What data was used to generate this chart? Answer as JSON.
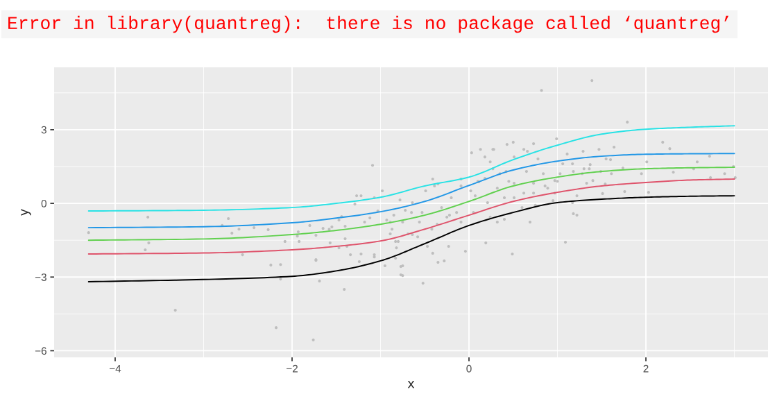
{
  "chart_data": {
    "type": "scatter",
    "xlabel": "x",
    "ylabel": "y",
    "annotations": [
      "Error in library(quantreg):  there is no package called ‘quantreg’"
    ],
    "xlim": [
      -4.69,
      3.38
    ],
    "ylim": [
      -6.27,
      5.54
    ],
    "xticks": [
      {
        "value": -4,
        "label": "−4"
      },
      {
        "value": -2,
        "label": "−2"
      },
      0,
      2
    ],
    "yticks": [
      {
        "value": -6,
        "label": "−6"
      },
      {
        "value": -3,
        "label": "−3"
      },
      0,
      3
    ],
    "grid": true,
    "legend": false,
    "series": [
      {
        "marker": "circle",
        "color": "#bebebe",
        "x": [
          -4.3,
          -3.63,
          -3.62,
          -3.66,
          -3.32,
          -2.79,
          -2.72,
          -2.68,
          -2.6,
          -2.56,
          -2.43,
          -2.27,
          -2.24,
          -2.18,
          -2.13,
          -2.13,
          -2.08,
          -1.94,
          -1.92,
          -1.76,
          -1.69,
          -1.73,
          -1.41,
          -1.58,
          -1.4,
          -1.09,
          -1.27,
          -1.38,
          -1.22,
          -1.07,
          -0.95,
          -0.77,
          -0.83,
          -0.75,
          -0.64,
          -0.52,
          -0.41,
          -0.35,
          -0.49,
          -0.35,
          -0.22,
          -0.09,
          0.03,
          0.11,
          0.19,
          0.24,
          0.28,
          0.42,
          0.5,
          0.66,
          0.69,
          0.49,
          0.82,
          0.99,
          0.97,
          1.18,
          1.09,
          1.39,
          1.4,
          1.64,
          1.79,
          1.95,
          2.01,
          2.31,
          2.54,
          2.73,
          2.72,
          2.89,
          2.99,
          3.01,
          2.27,
          2.03,
          1.51,
          1.54,
          1.76,
          1.74,
          1.37,
          1.29,
          1.18,
          1.6,
          2.19,
          2.58,
          -0.41,
          -0.39,
          -0.78,
          -0.65,
          -0.56,
          -0.58,
          -0.8,
          -0.83,
          -0.75,
          -0.47,
          -0.23,
          -0.28,
          -0.04,
          -0.09,
          0.05,
          0.13,
          0.18,
          0.27,
          0.43,
          0.51,
          0.62,
          0.73,
          0.78,
          0.18,
          0.32,
          0.4,
          0.51,
          0.62,
          0.73,
          0.32,
          0.4,
          0.24,
          0.6,
          0.75,
          0.95,
          1.0,
          1.03,
          1.06,
          1.11,
          1.17,
          1.22,
          1.22,
          1.28,
          1.3,
          1.33,
          1.36,
          1.47,
          1.49,
          1.55,
          1.61,
          1.17,
          -0.09,
          0.02,
          0.07,
          -0.2,
          -0.31,
          -0.14,
          -0.25,
          -0.36,
          -0.42,
          -0.53,
          -0.64,
          -0.72,
          -0.85,
          -0.89,
          -0.89,
          -0.69,
          0.27,
          0.35,
          0.45,
          0.65,
          0.84,
          0.86,
          0.1,
          0.51,
          0.21,
          0.73,
          0.97,
          0.89,
          -1.93,
          -1.8,
          -1.73,
          -1.65,
          -1.55,
          -1.47,
          -1.44,
          -1.29,
          -1.22,
          -1.07,
          -0.98,
          -1.57,
          -1.47,
          -1.34,
          -1.24,
          -1.07,
          -1.73,
          -1.4,
          -1.18,
          -1.12,
          -1.03,
          -0.93,
          -0.87,
          -0.82,
          -0.77,
          -0.75
        ],
        "values": [
          -1.19,
          -0.56,
          -1.61,
          -1.89,
          -4.35,
          -0.9,
          -0.62,
          -1.21,
          -1.05,
          -2.09,
          -0.99,
          -1.07,
          -2.51,
          -5.06,
          -2.49,
          -3.08,
          -1.55,
          -1.33,
          -1.55,
          -5.56,
          -3.16,
          -2.32,
          -3.5,
          -1.05,
          -0.93,
          1.55,
          0.31,
          -1.75,
          -2.06,
          -2.18,
          -2.54,
          -2.91,
          -1.55,
          -0.76,
          -1.27,
          -3.25,
          -2.03,
          -2.4,
          0.51,
          0.79,
          -0.48,
          0.99,
          2.06,
          0.88,
          -1.61,
          1.69,
          2.2,
          1.3,
          2.49,
          2.12,
          -0.76,
          -2.06,
          4.6,
          2.63,
          0.93,
          -0.42,
          -1.58,
          5.0,
          0.93,
          2.29,
          3.31,
          1.21,
          1.69,
          1.27,
          1.41,
          1.05,
          1.92,
          1.21,
          1.5,
          1.05,
          2.23,
          0.45,
          0.4,
          0.79,
          0.48,
          1.44,
          1.58,
          2.12,
          1.3,
          1.78,
          2.49,
          1.69,
          0.99,
          0.71,
          0.14,
          -0.37,
          -0.76,
          -1.36,
          -1.55,
          -2.23,
          -2.54,
          -1.75,
          -1.75,
          -2.34,
          -1.95,
          -0.76,
          -0.37,
          2.2,
          1.89,
          2.2,
          2.4,
          1.89,
          2.2,
          2.43,
          1.81,
          1.02,
          0.62,
          0.23,
          0.82,
          0.42,
          0.82,
          -0.76,
          -0.65,
          -0.56,
          -0.17,
          -0.08,
          0.11,
          0.9,
          1.21,
          1.61,
          2.01,
          1.61,
          0.31,
          -0.48,
          1.21,
          1.41,
          0.82,
          1.41,
          2.2,
          1.3,
          1.81,
          1.21,
          0.03,
          0.71,
          0.51,
          0.31,
          0.23,
          -0.17,
          -0.37,
          -0.56,
          -0.85,
          -1.05,
          -0.37,
          0.03,
          -0.28,
          -0.48,
          -0.76,
          -1.24,
          -1.24,
          1.41,
          1.21,
          0.9,
          1.3,
          1.21,
          0.71,
          0.9,
          0.23,
          0.03,
          0.42,
          0.42,
          0.62,
          -1.16,
          -0.9,
          -1.3,
          -1.02,
          -0.96,
          -0.68,
          -0.54,
          -0.03,
          0.31,
          0.23,
          0.51,
          -1.61,
          -1.81,
          -2.09,
          -2.37,
          -2.09,
          -2.29,
          -1.44,
          -0.76,
          -0.59,
          -0.31,
          -0.68,
          -1.05,
          -1.81,
          -2.57,
          -2.94
        ]
      },
      {
        "type": "line",
        "color": "#000000",
        "x": [
          -4.3,
          -3,
          -2,
          -1.5,
          -1,
          -0.5,
          0,
          0.5,
          1,
          1.5,
          2,
          2.5,
          3
        ],
        "values": [
          -3.19,
          -3.1,
          -2.97,
          -2.75,
          -2.34,
          -1.64,
          -0.9,
          -0.37,
          0.03,
          0.17,
          0.25,
          0.29,
          0.31
        ]
      },
      {
        "type": "line",
        "color": "#df536b",
        "x": [
          -4.3,
          -3,
          -2,
          -1.5,
          -1,
          -0.5,
          0,
          0.5,
          1,
          1.5,
          2,
          2.5,
          3
        ],
        "values": [
          -2.06,
          -2.02,
          -1.89,
          -1.75,
          -1.53,
          -1.05,
          -0.48,
          0.08,
          0.45,
          0.71,
          0.85,
          0.95,
          0.99
        ]
      },
      {
        "type": "line",
        "color": "#61d04f",
        "x": [
          -4.3,
          -3,
          -2,
          -1.5,
          -1,
          -0.5,
          0,
          0.5,
          1,
          1.5,
          2,
          2.5,
          3
        ],
        "values": [
          -1.5,
          -1.45,
          -1.27,
          -1.1,
          -0.85,
          -0.48,
          0.08,
          0.71,
          1.07,
          1.3,
          1.41,
          1.45,
          1.47
        ]
      },
      {
        "type": "line",
        "color": "#2297e6",
        "x": [
          -4.3,
          -3,
          -2,
          -1.5,
          -1,
          -0.5,
          0,
          0.5,
          1,
          1.5,
          2,
          2.5,
          3
        ],
        "values": [
          -0.99,
          -0.95,
          -0.79,
          -0.6,
          -0.34,
          0.08,
          0.73,
          1.36,
          1.72,
          1.92,
          2.0,
          2.02,
          2.03
        ]
      },
      {
        "type": "line",
        "color": "#28e2e5",
        "x": [
          -4.3,
          -3,
          -2,
          -1.5,
          -1,
          -0.5,
          0,
          0.5,
          1,
          1.5,
          2,
          2.5,
          3
        ],
        "values": [
          -0.31,
          -0.28,
          -0.17,
          0.0,
          0.25,
          0.71,
          1.07,
          1.78,
          2.37,
          2.82,
          3.02,
          3.1,
          3.16
        ]
      }
    ]
  }
}
